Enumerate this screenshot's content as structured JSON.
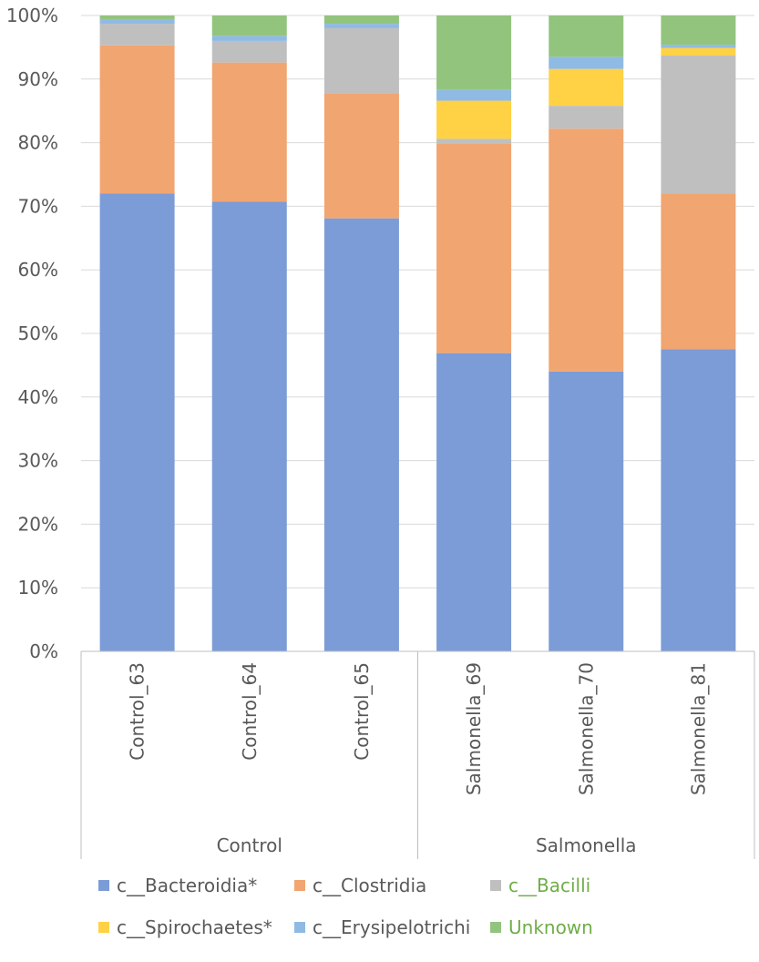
{
  "chart_data": {
    "type": "bar",
    "stacked": true,
    "percent": true,
    "categories": [
      "Control_63",
      "Control_64",
      "Control_65",
      "Salmonella_69",
      "Salmonella_70",
      "Salmonella_81"
    ],
    "groups": [
      {
        "label": "Control",
        "categories": [
          "Control_63",
          "Control_64",
          "Control_65"
        ]
      },
      {
        "label": "Salmonella",
        "categories": [
          "Salmonella_69",
          "Salmonella_70",
          "Salmonella_81"
        ]
      }
    ],
    "yticks": [
      "0%",
      "10%",
      "20%",
      "30%",
      "40%",
      "50%",
      "60%",
      "70%",
      "80%",
      "90%",
      "100%"
    ],
    "ylim": [
      0,
      100
    ],
    "grid": true,
    "legend_position": "bottom",
    "series": [
      {
        "name": "c__Bacteroidia*",
        "color": "#7b9cd6",
        "label_color": "#595959",
        "values": [
          72.0,
          70.7,
          68.1,
          46.9,
          44.0,
          47.5
        ]
      },
      {
        "name": "c__Clostridia",
        "color": "#f1a571",
        "label_color": "#595959",
        "values": [
          23.3,
          21.9,
          19.7,
          33.0,
          38.2,
          24.5
        ]
      },
      {
        "name": "c__Bacilli",
        "color": "#bfbfbf",
        "label_color": "#70ad47",
        "values": [
          3.4,
          3.4,
          10.2,
          0.7,
          3.6,
          21.7
        ]
      },
      {
        "name": "c__Spirochaetes*",
        "color": "#ffd145",
        "label_color": "#595959",
        "values": [
          0.0,
          0.0,
          0.0,
          6.0,
          5.8,
          1.2
        ]
      },
      {
        "name": "c__Erysipelotrichi",
        "color": "#8fbae4",
        "label_color": "#595959",
        "values": [
          0.6,
          0.8,
          0.7,
          1.7,
          1.9,
          0.5
        ]
      },
      {
        "name": "Unknown",
        "color": "#93c47d",
        "label_color": "#70ad47",
        "values": [
          0.7,
          3.2,
          1.3,
          11.7,
          6.5,
          4.6
        ]
      }
    ]
  }
}
